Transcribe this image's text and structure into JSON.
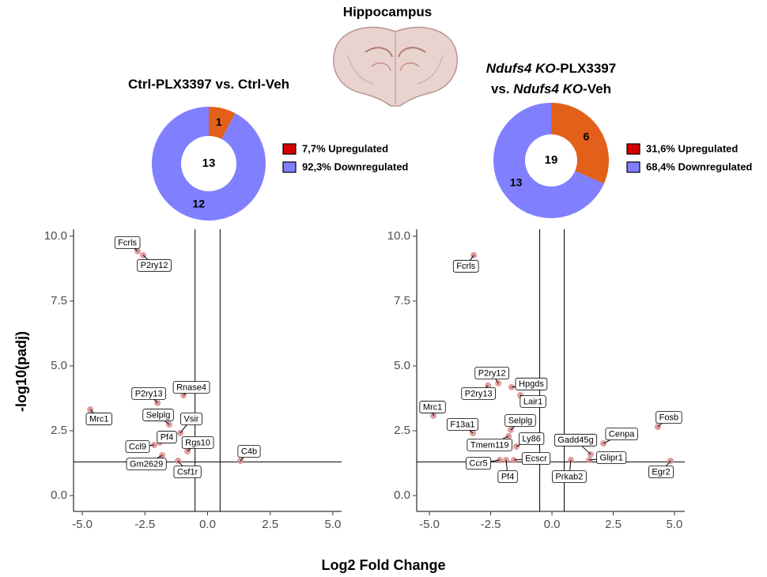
{
  "figure": {
    "title": "Hippocampus",
    "x_label": "Log2 Fold Change",
    "y_label": "-log10(padj)"
  },
  "chart_data": [
    {
      "type": "donut",
      "title_lines": [
        [
          {
            "text": "Ctrl-PLX3397 vs. Ctrl-Veh"
          }
        ]
      ],
      "values": [
        1,
        12
      ],
      "colors": [
        "#e2601a",
        "#8080ff"
      ],
      "total": 13,
      "legend": [
        {
          "label": "7,7% Upregulated",
          "color": "#d40000"
        },
        {
          "label": "92,3% Downregulated",
          "color": "#7f7fff"
        }
      ]
    },
    {
      "type": "donut",
      "title_lines": [
        [
          {
            "text": "Ndufs4 KO",
            "italic": true
          },
          {
            "text": "-PLX3397"
          }
        ],
        [
          {
            "text": "vs. "
          },
          {
            "text": "Ndufs4 KO",
            "italic": true
          },
          {
            "text": "-Veh"
          }
        ]
      ],
      "values": [
        6,
        13
      ],
      "colors": [
        "#e2601a",
        "#8080ff"
      ],
      "total": 19,
      "legend": [
        {
          "label": "31,6% Upregulated",
          "color": "#d40000"
        },
        {
          "label": "68,4% Downregulated",
          "color": "#7f7fff"
        }
      ]
    },
    {
      "type": "scatter",
      "color": "#d98c8c",
      "labels": [
        "Fcrls",
        "P2ry12",
        "Mrc1",
        "P2ry13",
        "Rnase4",
        "Selplg",
        "Vsir",
        "Pf4",
        "Ccl9",
        "Rgs10",
        "Gm2629",
        "Csf1r",
        "C4b"
      ],
      "x": [
        -2.79,
        -2.57,
        -4.68,
        -2.0,
        -0.96,
        -1.53,
        -1.09,
        -1.91,
        -2.13,
        -0.8,
        -1.81,
        -1.18,
        1.31
      ],
      "y": [
        9.42,
        9.27,
        3.32,
        3.57,
        3.87,
        2.74,
        2.41,
        2.04,
        1.95,
        1.71,
        1.55,
        1.34,
        1.34
      ],
      "xlim": [
        -5.35,
        5.35
      ],
      "ylim": [
        -0.61,
        10.27
      ],
      "xticks": [
        {
          "value": -5,
          "label": "-5.0"
        },
        {
          "value": -2.5,
          "label": "-2.5"
        },
        {
          "value": 0,
          "label": "0.0"
        },
        2.5,
        {
          "value": 5,
          "label": "5.0"
        }
      ],
      "yticks": [
        {
          "value": 0,
          "label": "0.0"
        },
        2.5,
        {
          "value": 5,
          "label": "5.0"
        },
        7.5,
        {
          "value": 10,
          "label": "10.0"
        }
      ],
      "vlines": [
        -0.5,
        0.5
      ],
      "hline": 1.3
    },
    {
      "type": "scatter",
      "color": "#d98c8c",
      "labels": [
        "Fcrls",
        "Mrc1",
        "P2ry12",
        "P2ry13",
        "Hpgds",
        "Lair1",
        "Selplg",
        "F13a1",
        "Tmem119",
        "Ly86",
        "Ccr5",
        "Pf4",
        "Ecscr",
        "Fosb",
        "Cenpa",
        "Gadd45g",
        "Glipr1",
        "Prkab2",
        "Egr2"
      ],
      "x": [
        -3.19,
        -4.84,
        -2.19,
        -2.61,
        -1.65,
        -1.29,
        -1.68,
        -3.23,
        -1.77,
        -1.45,
        -2.13,
        -1.87,
        -1.55,
        4.32,
        2.1,
        1.58,
        1.52,
        0.77,
        4.84
      ],
      "y": [
        9.27,
        3.08,
        4.33,
        4.24,
        4.18,
        3.87,
        2.53,
        2.41,
        2.29,
        1.89,
        1.37,
        1.37,
        1.37,
        2.65,
        2.01,
        1.59,
        1.37,
        1.37,
        1.34
      ],
      "xlim": [
        -5.52,
        5.42
      ],
      "ylim": [
        -0.61,
        10.27
      ],
      "xticks": [
        {
          "value": -5,
          "label": "-5.0"
        },
        {
          "value": -2.5,
          "label": "-2.5"
        },
        {
          "value": 0,
          "label": "0.0"
        },
        2.5,
        {
          "value": 5,
          "label": "5.0"
        }
      ],
      "yticks": [
        {
          "value": 0,
          "label": "0.0"
        },
        2.5,
        {
          "value": 5,
          "label": "5.0"
        },
        7.5,
        {
          "value": 10,
          "label": "10.0"
        }
      ],
      "vlines": [
        -0.5,
        0.5
      ],
      "hline": 1.3
    }
  ]
}
